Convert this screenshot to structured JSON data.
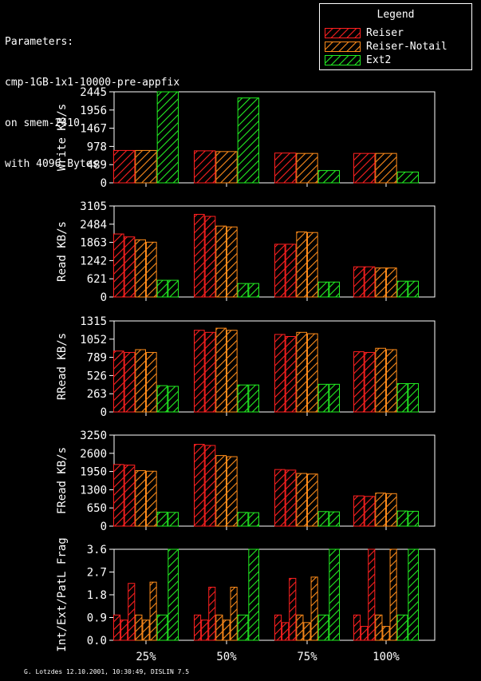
{
  "header": {
    "lines": [
      "Parameters:",
      "cmp-1GB-1x1-10000-pre-appfix",
      "on smem-2410",
      "with 4096 Bytes"
    ]
  },
  "legend": {
    "title": "Legend",
    "items": [
      "Reiser",
      "Reiser-Notail",
      "Ext2"
    ]
  },
  "colors": {
    "reiser": "#ff2020",
    "notail": "#ff8c1a",
    "ext2": "#22ee22",
    "axis": "#ffffff",
    "background": "#000000"
  },
  "footer": "G. Lotzdes 12.10.2001, 10:30:49, DISLIN 7.5",
  "chart_data": [
    {
      "type": "bar",
      "ylabel": "Write KB/s",
      "ylim": [
        0,
        2445
      ],
      "yticks": [
        0,
        489,
        978,
        1467,
        1956,
        2445
      ],
      "ytick_labels": [
        "0",
        "489",
        "978",
        "1467",
        "1956",
        "2445"
      ],
      "categories": [
        "25%",
        "50%",
        "75%",
        "100%"
      ],
      "series": [
        {
          "name": "Reiser",
          "values": [
            [
              870
            ],
            [
              860
            ],
            [
              800
            ],
            [
              790
            ]
          ]
        },
        {
          "name": "Reiser-Notail",
          "values": [
            [
              870
            ],
            [
              840
            ],
            [
              790
            ],
            [
              790
            ]
          ]
        },
        {
          "name": "Ext2",
          "values": [
            [
              2445
            ],
            [
              2280
            ],
            [
              330
            ],
            [
              290
            ]
          ]
        }
      ]
    },
    {
      "type": "bar",
      "ylabel": "Read KB/s",
      "ylim": [
        0,
        3105
      ],
      "yticks": [
        0,
        621,
        1242,
        1863,
        2484,
        3105
      ],
      "ytick_labels": [
        "0",
        "621",
        "1242",
        "1863",
        "2484",
        "3105"
      ],
      "categories": [
        "25%",
        "50%",
        "75%",
        "100%"
      ],
      "series": [
        {
          "name": "Reiser",
          "values": [
            [
              2150,
              2050
            ],
            [
              2820,
              2750
            ],
            [
              1800,
              1800
            ],
            [
              1030,
              1030
            ]
          ]
        },
        {
          "name": "Reiser-Notail",
          "values": [
            [
              1950,
              1870
            ],
            [
              2420,
              2390
            ],
            [
              2220,
              2200
            ],
            [
              990,
              990
            ]
          ]
        },
        {
          "name": "Ext2",
          "values": [
            [
              570,
              570
            ],
            [
              460,
              460
            ],
            [
              510,
              510
            ],
            [
              540,
              540
            ]
          ]
        }
      ]
    },
    {
      "type": "bar",
      "ylabel": "RRead KB/s",
      "ylim": [
        0,
        1315
      ],
      "yticks": [
        0,
        263,
        526,
        789,
        1052,
        1315
      ],
      "ytick_labels": [
        "0",
        "263",
        "526",
        "789",
        "1052",
        "1315"
      ],
      "categories": [
        "25%",
        "50%",
        "75%",
        "100%"
      ],
      "series": [
        {
          "name": "Reiser",
          "values": [
            [
              880,
              860
            ],
            [
              1180,
              1150
            ],
            [
              1120,
              1090
            ],
            [
              870,
              860
            ]
          ]
        },
        {
          "name": "Reiser-Notail",
          "values": [
            [
              900,
              860
            ],
            [
              1210,
              1180
            ],
            [
              1150,
              1130
            ],
            [
              920,
              900
            ]
          ]
        },
        {
          "name": "Ext2",
          "values": [
            [
              380,
              370
            ],
            [
              390,
              390
            ],
            [
              400,
              400
            ],
            [
              410,
              410
            ]
          ]
        }
      ]
    },
    {
      "type": "bar",
      "ylabel": "FRead KB/s",
      "ylim": [
        0,
        3250
      ],
      "yticks": [
        0,
        650,
        1300,
        1950,
        2600,
        3250
      ],
      "ytick_labels": [
        "0",
        "650",
        "1300",
        "1950",
        "2600",
        "3250"
      ],
      "categories": [
        "25%",
        "50%",
        "75%",
        "100%"
      ],
      "series": [
        {
          "name": "Reiser",
          "values": [
            [
              2200,
              2180
            ],
            [
              2920,
              2880
            ],
            [
              2020,
              2000
            ],
            [
              1080,
              1060
            ]
          ]
        },
        {
          "name": "Reiser-Notail",
          "values": [
            [
              1980,
              1960
            ],
            [
              2520,
              2480
            ],
            [
              1880,
              1860
            ],
            [
              1180,
              1160
            ]
          ]
        },
        {
          "name": "Ext2",
          "values": [
            [
              500,
              490
            ],
            [
              490,
              480
            ],
            [
              520,
              510
            ],
            [
              540,
              530
            ]
          ]
        }
      ]
    },
    {
      "type": "bar",
      "ylabel": "Int/Ext/PatL Frag",
      "ylim": [
        0,
        3.6
      ],
      "yticks": [
        0,
        0.9,
        1.8,
        2.7,
        3.6
      ],
      "ytick_labels": [
        "0.0",
        "0.9",
        "1.8",
        "2.7",
        "3.6"
      ],
      "categories": [
        "25%",
        "50%",
        "75%",
        "100%"
      ],
      "series": [
        {
          "name": "Reiser",
          "values": [
            [
              1.0,
              0.8,
              2.25
            ],
            [
              1.0,
              0.8,
              2.1
            ],
            [
              1.0,
              0.7,
              2.45
            ],
            [
              1.0,
              0.55,
              3.6
            ]
          ]
        },
        {
          "name": "Reiser-Notail",
          "values": [
            [
              1.0,
              0.8,
              2.3
            ],
            [
              1.0,
              0.8,
              2.1
            ],
            [
              1.0,
              0.7,
              2.5
            ],
            [
              1.0,
              0.55,
              3.6
            ]
          ]
        },
        {
          "name": "Ext2",
          "values": [
            [
              1.0,
              3.6
            ],
            [
              1.0,
              3.6
            ],
            [
              1.0,
              3.6
            ],
            [
              1.0,
              3.6
            ]
          ]
        }
      ]
    }
  ]
}
